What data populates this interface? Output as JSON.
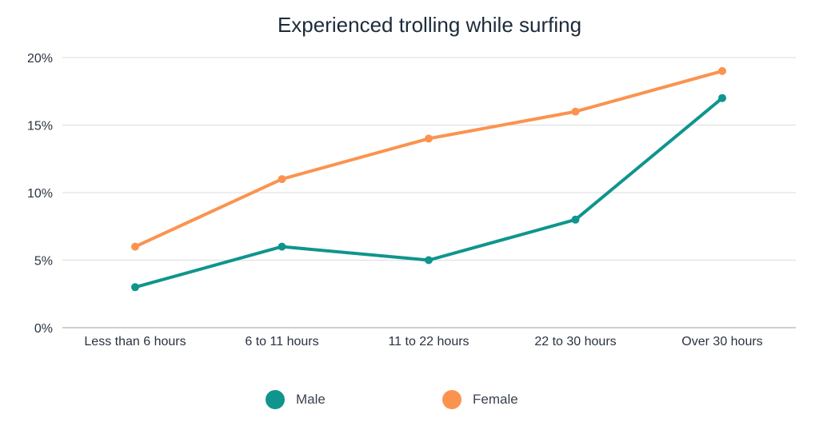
{
  "chart_data": {
    "type": "line",
    "title": "Experienced trolling while surfing",
    "categories": [
      "Less than 6 hours",
      "6 to 11 hours",
      "11 to 22 hours",
      "22 to 30 hours",
      "Over 30 hours"
    ],
    "ylim": [
      0,
      20
    ],
    "yticks": [
      0,
      5,
      10,
      15,
      20
    ],
    "ytick_labels": [
      "0%",
      "5%",
      "10%",
      "15%",
      "20%"
    ],
    "grid": true,
    "legend_position": "bottom",
    "series": [
      {
        "name": "Male",
        "color": "#0f958d",
        "values": [
          3,
          6,
          5,
          8,
          17
        ]
      },
      {
        "name": "Female",
        "color": "#fb934f",
        "values": [
          6,
          11,
          14,
          16,
          19
        ]
      }
    ]
  }
}
